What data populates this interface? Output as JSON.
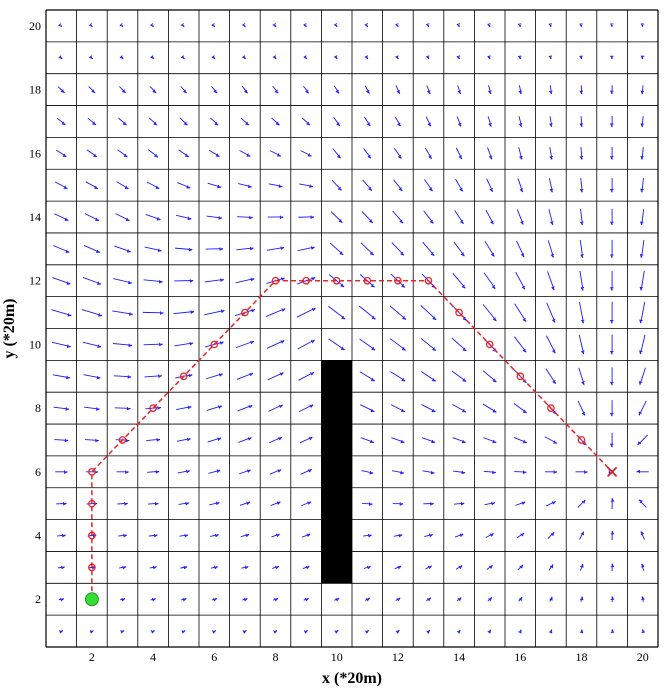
{
  "chart_data": {
    "type": "scatter",
    "subtype": "quiver-field-with-path",
    "xlabel": "x (*20m)",
    "ylabel": "y (*20m)",
    "xlim": [
      0.5,
      20.5
    ],
    "ylim": [
      0.5,
      20.5
    ],
    "xticks": [
      2,
      4,
      6,
      8,
      10,
      12,
      14,
      16,
      18,
      20
    ],
    "yticks": [
      2,
      4,
      6,
      8,
      10,
      12,
      14,
      16,
      18,
      20
    ],
    "grid": true,
    "colors": {
      "arrows": "#1a1aff",
      "path": "#e8242b",
      "start": "#33dd33",
      "goal": "#d0202a",
      "obstacle": "#000000",
      "grid": "#000000"
    },
    "obstacle": {
      "x": [
        9.5,
        10.5
      ],
      "y": [
        2.5,
        9.5
      ]
    },
    "start": {
      "x": 2,
      "y": 2
    },
    "goal": {
      "x": 19,
      "y": 6
    },
    "path": [
      [
        2,
        2
      ],
      [
        2,
        3
      ],
      [
        2,
        4
      ],
      [
        2,
        5
      ],
      [
        2,
        6
      ],
      [
        3,
        7
      ],
      [
        4,
        8
      ],
      [
        5,
        9
      ],
      [
        6,
        10
      ],
      [
        7,
        11
      ],
      [
        8,
        12
      ],
      [
        9,
        12
      ],
      [
        10,
        12
      ],
      [
        11,
        12
      ],
      [
        12,
        12
      ],
      [
        13,
        12
      ],
      [
        14,
        11
      ],
      [
        15,
        10
      ],
      [
        16,
        9
      ],
      [
        17,
        8
      ],
      [
        18,
        7
      ],
      [
        19,
        6
      ]
    ]
  }
}
